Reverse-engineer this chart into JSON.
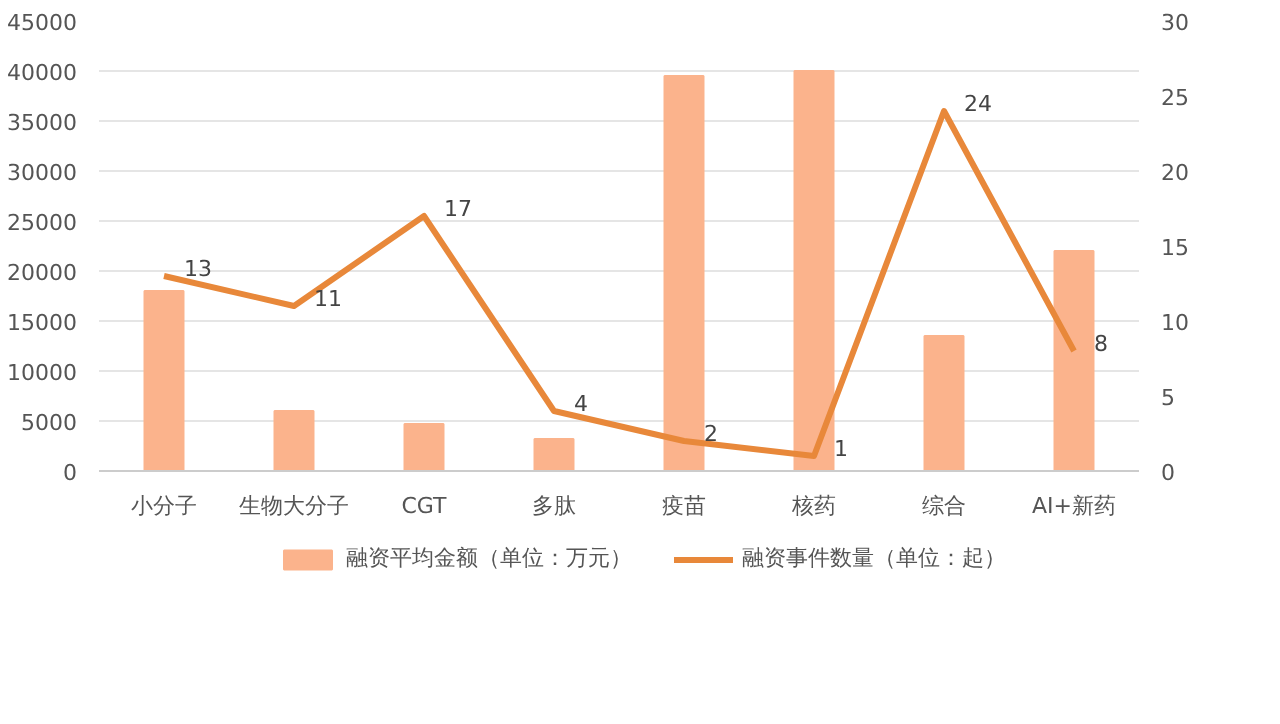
{
  "chart_data": {
    "type": "bar",
    "categories": [
      "小分子",
      "生物大分子",
      "CGT",
      "多肽",
      "疫苗",
      "核药",
      "综合",
      "AI+新药"
    ],
    "series": [
      {
        "name": "融资平均金额（单位：万元）",
        "color": "#fbb38c",
        "values": [
          18000,
          6000,
          4700,
          3200,
          39500,
          40000,
          13500,
          22000
        ]
      },
      {
        "name": "融资事件数量（单位：起）",
        "type": "line",
        "axis": "y2",
        "color": "#e8883a",
        "values": [
          13,
          11,
          17,
          4,
          2,
          1,
          24,
          8
        ],
        "value_labels": [
          "13",
          "11",
          "17",
          "4",
          "2",
          "1",
          "24",
          "8"
        ]
      }
    ],
    "ylim": [
      0,
      45000
    ],
    "yticks": [
      0,
      5000,
      10000,
      15000,
      20000,
      25000,
      30000,
      35000,
      40000,
      45000
    ],
    "y2lim": [
      0,
      30
    ],
    "y2ticks": [
      0,
      5,
      10,
      15,
      20,
      25,
      30
    ],
    "grid": "y",
    "legend": "bottom"
  }
}
